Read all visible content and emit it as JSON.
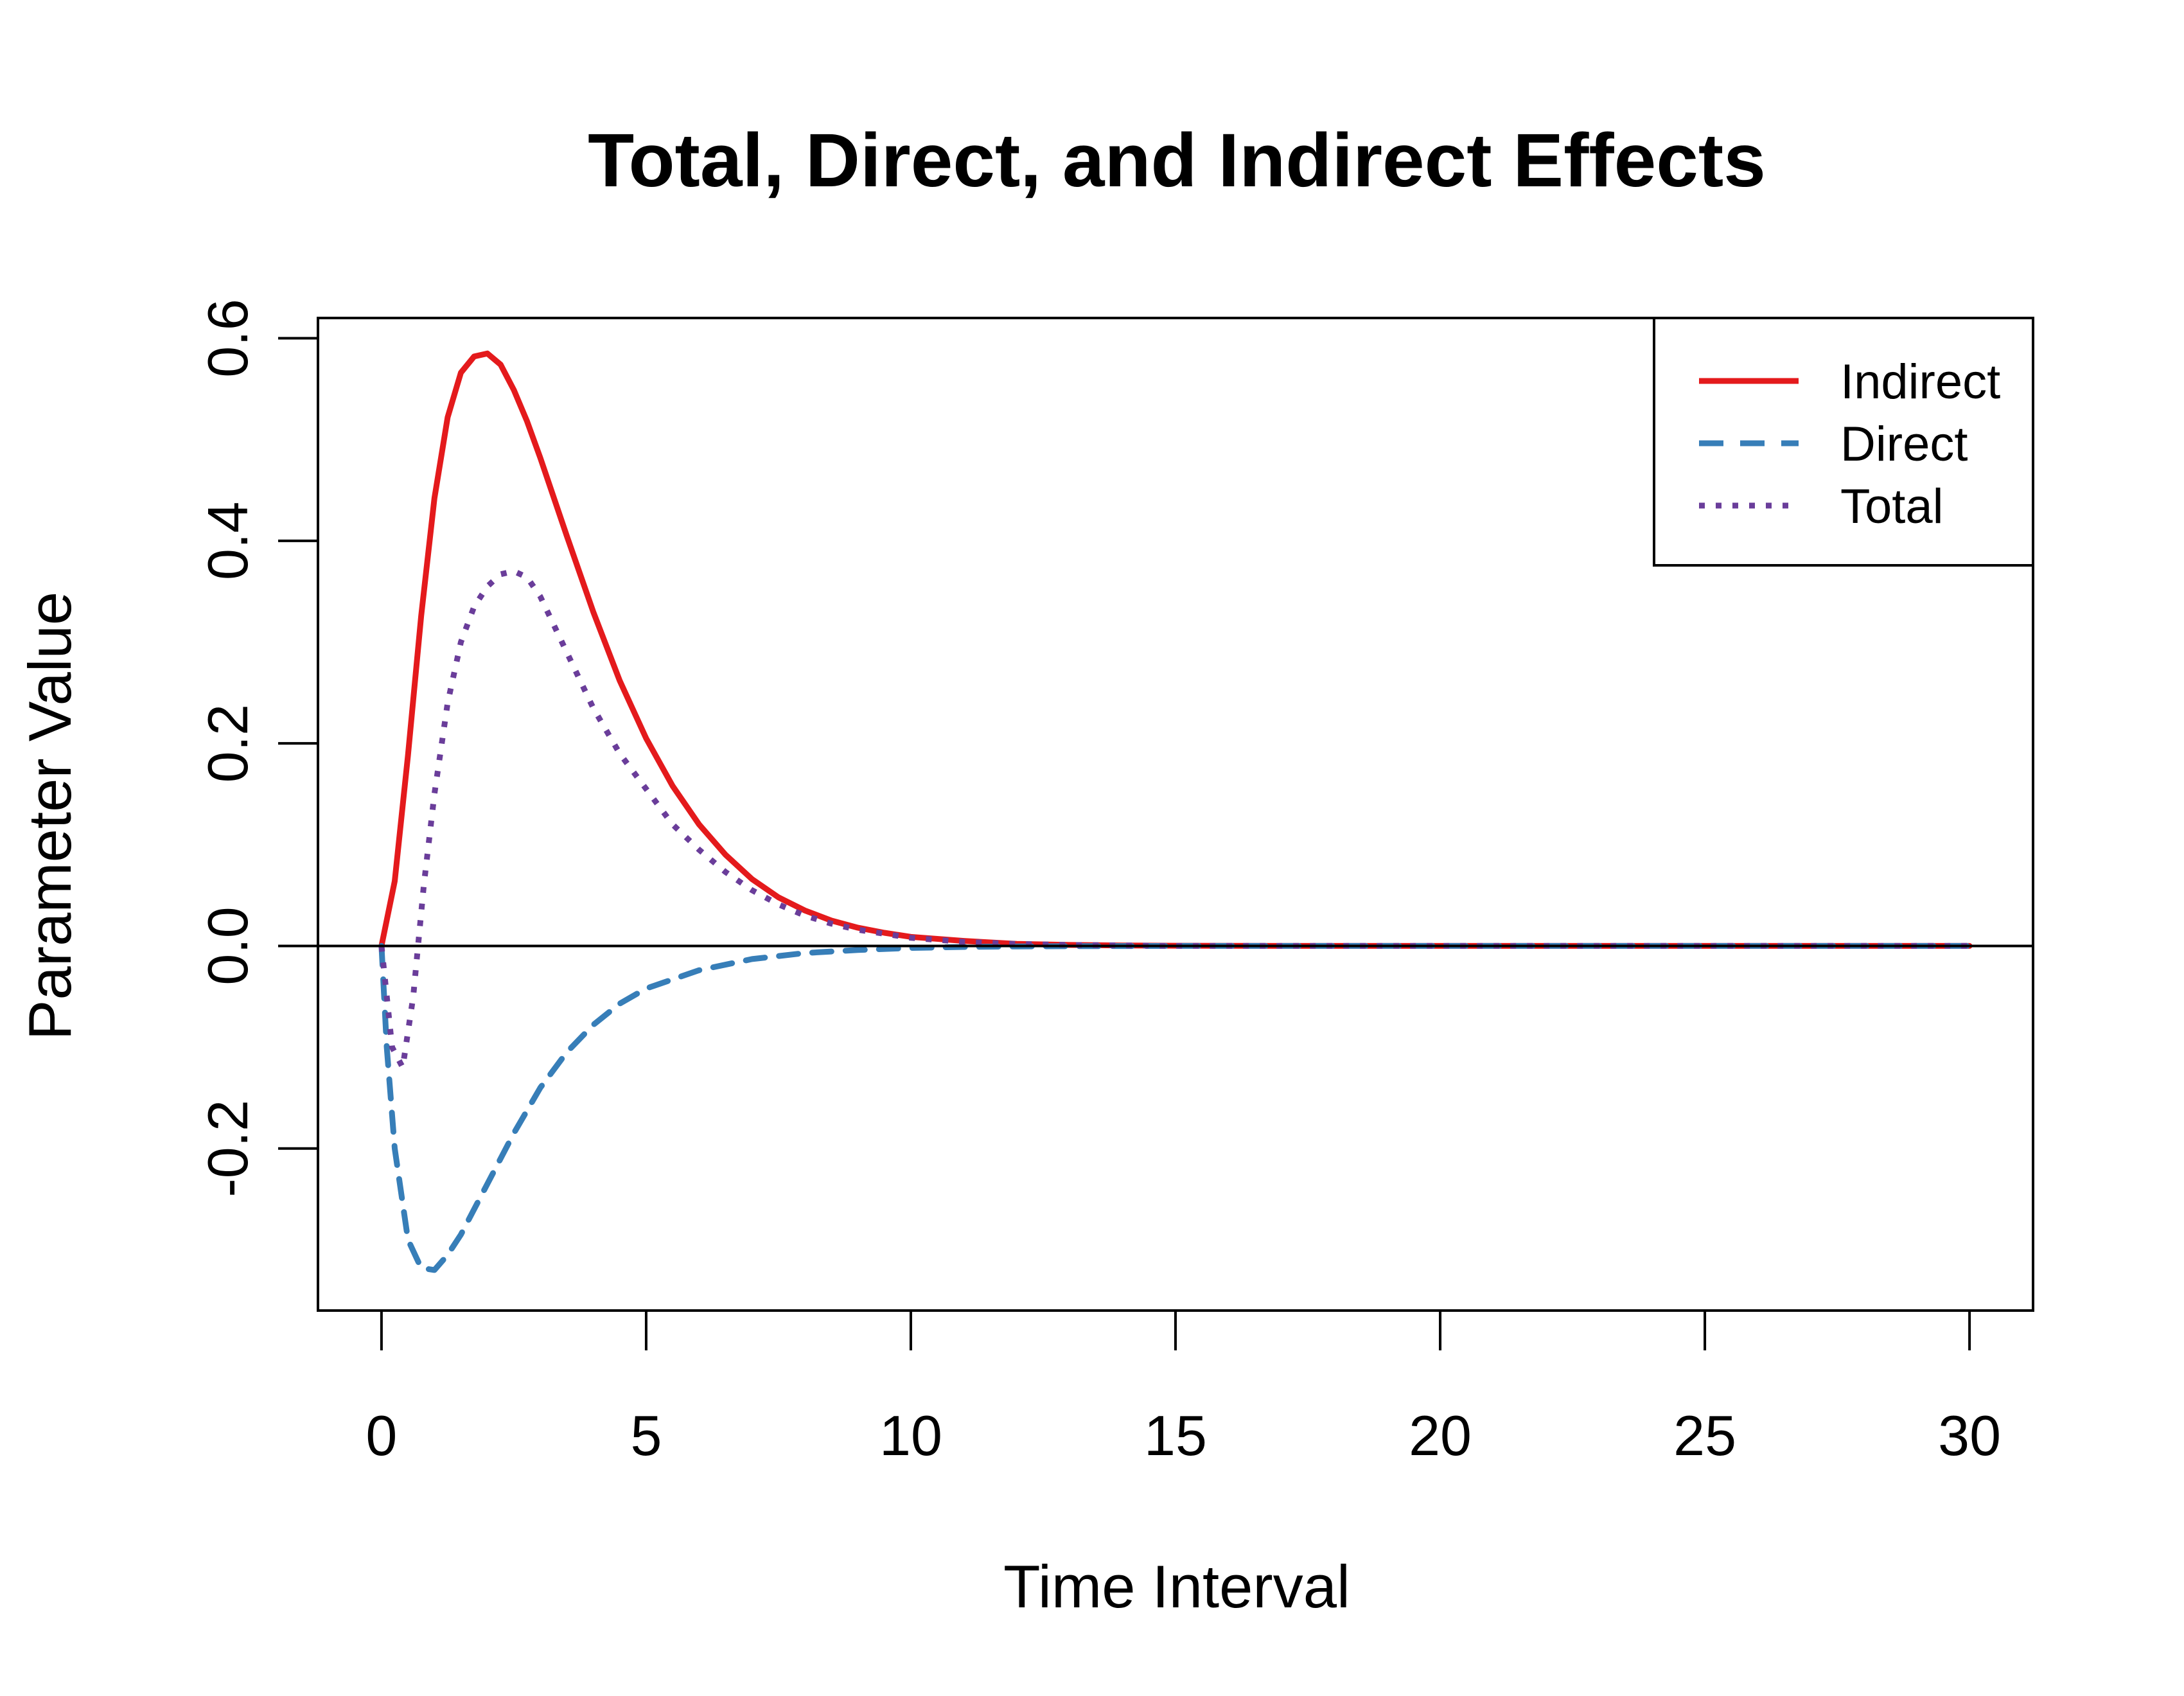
{
  "chart_data": {
    "type": "line",
    "title": "Total, Direct, and Indirect Effects",
    "xlabel": "Time Interval",
    "ylabel": "Parameter Value",
    "xlim": [
      -1.2,
      31.2
    ],
    "ylim": [
      -0.36,
      0.62
    ],
    "x_ticks": [
      0,
      5,
      10,
      15,
      20,
      25,
      30
    ],
    "x_tick_labels": [
      "0",
      "5",
      "10",
      "15",
      "20",
      "25",
      "30"
    ],
    "y_ticks": [
      -0.2,
      0.0,
      0.2,
      0.4,
      0.6
    ],
    "y_tick_labels": [
      "-0.2",
      "0.0",
      "0.2",
      "0.4",
      "0.6"
    ],
    "reference_line_y": 0,
    "grid": false,
    "legend_position": "top-right",
    "series": [
      {
        "name": "Indirect",
        "color": "#E41A1C",
        "style": "solid",
        "x": [
          0,
          0.25,
          0.5,
          0.75,
          1,
          1.25,
          1.5,
          1.75,
          2,
          2.25,
          2.5,
          2.75,
          3,
          3.5,
          4,
          4.5,
          5,
          5.5,
          6,
          6.5,
          7,
          7.5,
          8,
          8.5,
          9,
          9.5,
          10,
          11,
          12,
          13,
          14,
          15,
          17,
          20,
          25,
          30
        ],
        "values": [
          0,
          0.064,
          0.188,
          0.326,
          0.442,
          0.522,
          0.566,
          0.582,
          0.585,
          0.574,
          0.549,
          0.518,
          0.482,
          0.405,
          0.33,
          0.262,
          0.205,
          0.158,
          0.12,
          0.09,
          0.066,
          0.048,
          0.035,
          0.025,
          0.018,
          0.013,
          0.009,
          0.005,
          0.002,
          0.001,
          0.0005,
          0.0002,
          0,
          0,
          0,
          0
        ]
      },
      {
        "name": "Direct",
        "color": "#377EB8",
        "style": "dashed",
        "x": [
          0,
          0.1,
          0.25,
          0.5,
          0.75,
          1,
          1.25,
          1.5,
          2,
          2.5,
          3,
          3.5,
          4,
          4.5,
          5,
          6,
          7,
          8,
          9,
          10,
          11,
          12,
          13,
          15,
          20,
          25,
          30
        ],
        "values": [
          0,
          -0.1,
          -0.2,
          -0.29,
          -0.318,
          -0.32,
          -0.305,
          -0.285,
          -0.235,
          -0.185,
          -0.14,
          -0.105,
          -0.078,
          -0.057,
          -0.042,
          -0.024,
          -0.013,
          -0.007,
          -0.004,
          -0.002,
          -0.001,
          -0.0005,
          -0.0002,
          0,
          0,
          0,
          0
        ]
      },
      {
        "name": "Total",
        "color": "#6A3D9A",
        "style": "dotted",
        "x": [
          0,
          0.2,
          0.4,
          0.6,
          0.8,
          1,
          1.25,
          1.5,
          1.75,
          2,
          2.25,
          2.5,
          2.75,
          3,
          3.5,
          4,
          4.5,
          5,
          5.5,
          6,
          6.5,
          7,
          7.5,
          8,
          8.5,
          9,
          10,
          11,
          12,
          13,
          15,
          20,
          25,
          30
        ],
        "values": [
          0,
          -0.1,
          -0.12,
          -0.05,
          0.06,
          0.15,
          0.24,
          0.3,
          0.335,
          0.355,
          0.367,
          0.37,
          0.364,
          0.345,
          0.29,
          0.235,
          0.19,
          0.155,
          0.12,
          0.095,
          0.073,
          0.055,
          0.041,
          0.03,
          0.022,
          0.016,
          0.008,
          0.004,
          0.002,
          0.001,
          0,
          0,
          0,
          0
        ]
      }
    ]
  }
}
